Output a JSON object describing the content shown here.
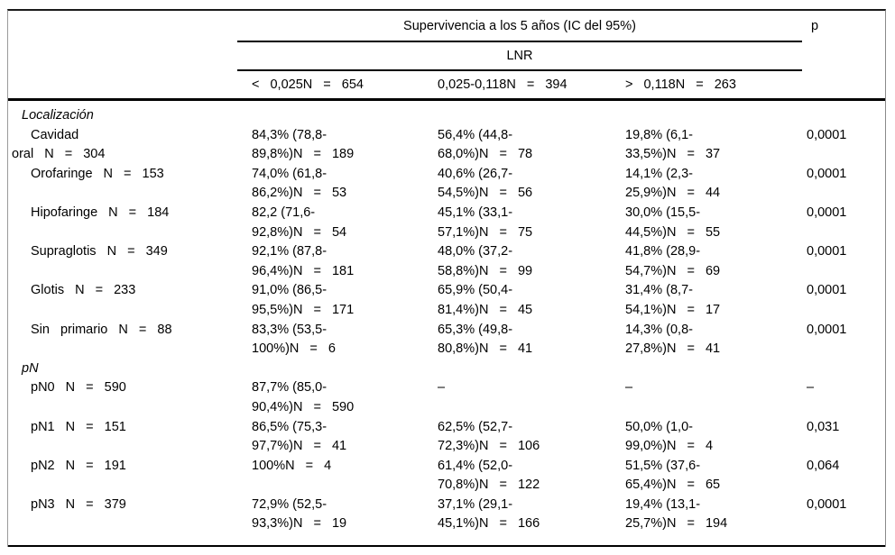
{
  "colors": {
    "text": "#000000",
    "background": "#ffffff",
    "rule": "#000000"
  },
  "table": {
    "header": {
      "span_title": "Supervivencia a los 5 años (IC del 95%)",
      "p_label": "p",
      "sub_title": "LNR",
      "columns": [
        "< 0,025N = 654",
        "0,025-0,118N = 394",
        "> 0,118N = 263"
      ]
    },
    "sections": [
      {
        "title": "Localización",
        "rows": [
          {
            "label1": "Cavidad",
            "label2": "oral N = 304",
            "c1a": "84,3% (78,8-",
            "c1b": "89,8%)N = 189",
            "c2a": "56,4% (44,8-",
            "c2b": "68,0%)N = 78",
            "c3a": "19,8% (6,1-",
            "c3b": "33,5%)N = 37",
            "p": "0,0001"
          },
          {
            "label1": "Orofaringe N = 153",
            "label2": "",
            "c1a": "74,0% (61,8-",
            "c1b": "86,2%)N = 53",
            "c2a": "40,6% (26,7-",
            "c2b": "54,5%)N = 56",
            "c3a": "14,1% (2,3-",
            "c3b": "25,9%)N = 44",
            "p": "0,0001"
          },
          {
            "label1": "Hipofaringe N = 184",
            "label2": "",
            "c1a": "82,2 (71,6-",
            "c1b": "92,8%)N = 54",
            "c2a": "45,1% (33,1-",
            "c2b": "57,1%)N = 75",
            "c3a": "30,0% (15,5-",
            "c3b": "44,5%)N = 55",
            "p": "0,0001"
          },
          {
            "label1": "Supraglotis N = 349",
            "label2": "",
            "c1a": "92,1% (87,8-",
            "c1b": "96,4%)N = 181",
            "c2a": "48,0% (37,2-",
            "c2b": "58,8%)N = 99",
            "c3a": "41,8% (28,9-",
            "c3b": "54,7%)N = 69",
            "p": "0,0001"
          },
          {
            "label1": "Glotis N = 233",
            "label2": "",
            "c1a": "91,0% (86,5-",
            "c1b": "95,5%)N = 171",
            "c2a": "65,9% (50,4-",
            "c2b": "81,4%)N = 45",
            "c3a": "31,4% (8,7-",
            "c3b": "54,1%)N = 17",
            "p": "0,0001"
          },
          {
            "label1": "Sin primario N = 88",
            "label2": "",
            "c1a": "83,3% (53,5-",
            "c1b": "100%)N = 6",
            "c2a": "65,3% (49,8-",
            "c2b": "80,8%)N = 41",
            "c3a": "14,3% (0,8-",
            "c3b": "27,8%)N = 41",
            "p": "0,0001"
          }
        ]
      },
      {
        "title": "pN",
        "rows": [
          {
            "label1": "pN0 N = 590",
            "label2": "",
            "c1a": "87,7% (85,0-",
            "c1b": "90,4%)N = 590",
            "c2a": "–",
            "c2b": "",
            "c3a": "–",
            "c3b": "",
            "p": "–"
          },
          {
            "label1": "pN1 N = 151",
            "label2": "",
            "c1a": "86,5% (75,3-",
            "c1b": "97,7%)N = 41",
            "c2a": "62,5% (52,7-",
            "c2b": "72,3%)N = 106",
            "c3a": "50,0% (1,0-",
            "c3b": "99,0%)N = 4",
            "p": "0,031"
          },
          {
            "label1": "pN2 N = 191",
            "label2": "",
            "c1a": "100%N = 4",
            "c1b": "",
            "c2a": "61,4% (52,0-",
            "c2b": "70,8%)N = 122",
            "c3a": "51,5% (37,6-",
            "c3b": "65,4%)N = 65",
            "p": "0,064"
          },
          {
            "label1": "pN3 N = 379",
            "label2": "",
            "c1a": "72,9% (52,5-",
            "c1b": "93,3%)N = 19",
            "c2a": "37,1% (29,1-",
            "c2b": "45,1%)N = 166",
            "c3a": "19,4% (13,1-",
            "c3b": "25,7%)N = 194",
            "p": "0,0001"
          }
        ]
      }
    ]
  }
}
